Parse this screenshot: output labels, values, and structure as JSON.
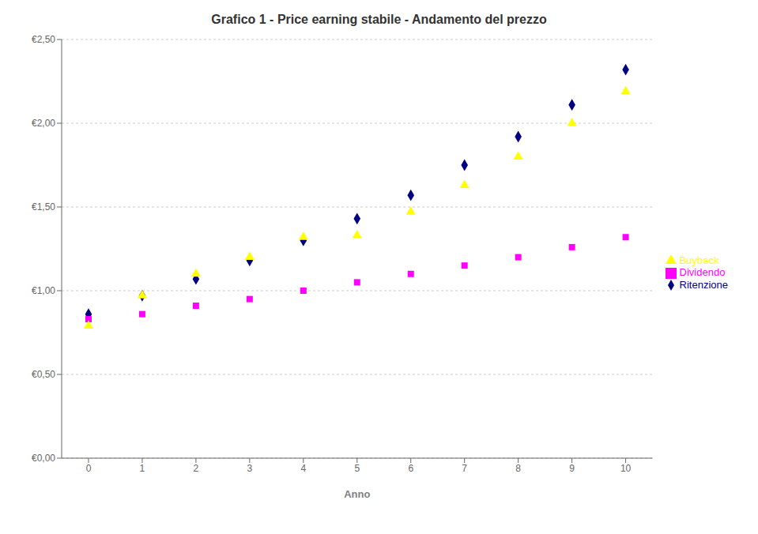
{
  "chart_data": {
    "type": "scatter",
    "title": "Grafico 1 - Price earning stabile - Andamento del prezzo",
    "x_label": "Anno",
    "x": [
      0,
      1,
      2,
      3,
      4,
      5,
      6,
      7,
      8,
      9,
      10
    ],
    "series": [
      {
        "name": "Ritenzione",
        "color": "#000080",
        "marker": "diamond",
        "values": [
          0.86,
          0.97,
          1.07,
          1.18,
          1.3,
          1.43,
          1.57,
          1.75,
          1.92,
          2.11,
          2.32
        ]
      },
      {
        "name": "Dividendo",
        "color": "#FF00FF",
        "marker": "square",
        "values": [
          0.83,
          0.86,
          0.91,
          0.95,
          1.0,
          1.05,
          1.1,
          1.15,
          1.2,
          1.26,
          1.32
        ]
      },
      {
        "name": "Buyback",
        "color": "#FFFF00",
        "marker": "triangle",
        "values": [
          0.79,
          0.97,
          1.1,
          1.2,
          1.32,
          1.33,
          1.47,
          1.63,
          1.8,
          2.0,
          2.19
        ]
      }
    ],
    "xlim": [
      -0.5,
      10.5
    ],
    "xticks": [
      0,
      1,
      2,
      3,
      4,
      5,
      6,
      7,
      8,
      9,
      10
    ],
    "ylim": [
      0.0,
      2.5
    ],
    "yticks": [
      {
        "value": 0.0,
        "label": "€0,00"
      },
      {
        "value": 0.5,
        "label": "€0,50"
      },
      {
        "value": 1.0,
        "label": "€1,00"
      },
      {
        "value": 1.5,
        "label": "€1,50"
      },
      {
        "value": 2.0,
        "label": "€2,00"
      },
      {
        "value": 2.5,
        "label": "€2,50"
      }
    ],
    "grid": "y",
    "legend": "right"
  }
}
